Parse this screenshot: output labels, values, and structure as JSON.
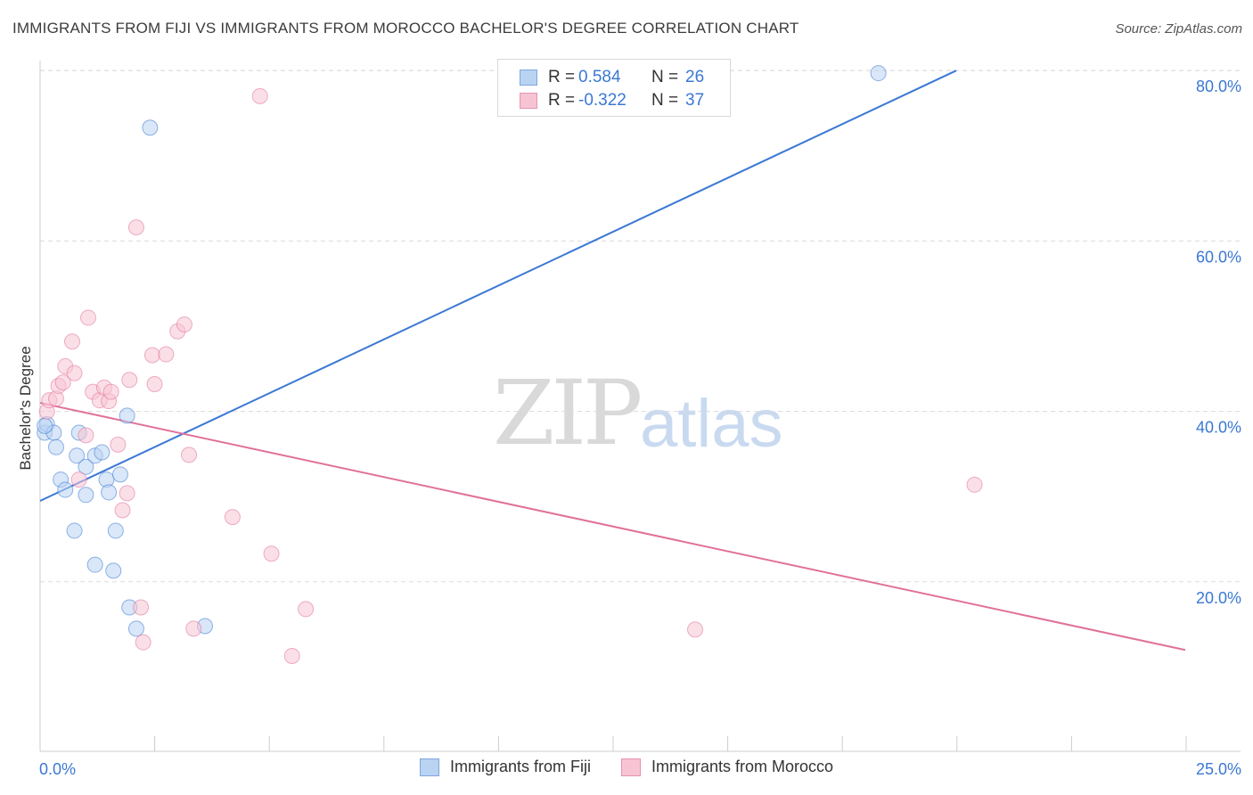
{
  "title": "IMMIGRANTS FROM FIJI VS IMMIGRANTS FROM MOROCCO BACHELOR'S DEGREE CORRELATION CHART",
  "source": "Source: ZipAtlas.com",
  "watermark": {
    "part1": "ZIP",
    "part2": "atlas"
  },
  "legend": {
    "rows": [
      {
        "r_label": "R =",
        "r_value": "0.584",
        "n_label": "N =",
        "n_value": "26"
      },
      {
        "r_label": "R =",
        "r_value": "-0.322",
        "n_label": "N =",
        "n_value": "37"
      }
    ]
  },
  "chart_data": {
    "type": "scatter",
    "ylabel": "Bachelor's Degree",
    "xlim": [
      0,
      25
    ],
    "ylim": [
      0,
      84
    ],
    "x_tick_labels": {
      "min": "0.0%",
      "max": "25.0%"
    },
    "y_ticks": [
      {
        "value": 20,
        "label": "20.0%"
      },
      {
        "value": 40,
        "label": "40.0%"
      },
      {
        "value": 60,
        "label": "60.0%"
      },
      {
        "value": 80,
        "label": "80.0%"
      }
    ],
    "grid": true,
    "legend_position": "bottom",
    "series": [
      {
        "name": "Immigrants from Fiji",
        "color": "#3a78d4",
        "fill": "#b9d3f3",
        "trend": {
          "x": [
            0,
            20
          ],
          "y": [
            29.5,
            80
          ]
        },
        "points": [
          [
            0.1,
            37.5
          ],
          [
            0.15,
            38.5
          ],
          [
            0.3,
            37.5
          ],
          [
            0.35,
            35.8
          ],
          [
            0.45,
            32
          ],
          [
            0.55,
            30.8
          ],
          [
            0.85,
            37.5
          ],
          [
            0.75,
            26
          ],
          [
            0.8,
            34.8
          ],
          [
            1.0,
            33.5
          ],
          [
            1.0,
            30.2
          ],
          [
            1.2,
            22
          ],
          [
            1.2,
            34.8
          ],
          [
            1.35,
            35.2
          ],
          [
            1.45,
            32
          ],
          [
            1.5,
            30.5
          ],
          [
            1.6,
            21.3
          ],
          [
            1.65,
            26
          ],
          [
            1.75,
            32.6
          ],
          [
            1.9,
            39.5
          ],
          [
            1.95,
            17
          ],
          [
            2.1,
            14.5
          ],
          [
            2.4,
            73.3
          ],
          [
            3.6,
            14.8
          ],
          [
            18.3,
            79.7
          ],
          [
            0.1,
            38.3
          ]
        ]
      },
      {
        "name": "Immigrants from Morocco",
        "color": "#e0719a",
        "fill": "#f7c4d4",
        "trend": {
          "x": [
            0,
            25
          ],
          "y": [
            41,
            12
          ]
        },
        "points": [
          [
            0.15,
            40
          ],
          [
            0.2,
            41.3
          ],
          [
            0.35,
            41.5
          ],
          [
            0.4,
            43
          ],
          [
            0.5,
            43.4
          ],
          [
            0.55,
            45.3
          ],
          [
            0.7,
            48.2
          ],
          [
            0.75,
            44.5
          ],
          [
            0.85,
            32
          ],
          [
            1.0,
            37.2
          ],
          [
            1.05,
            51
          ],
          [
            1.15,
            42.3
          ],
          [
            1.3,
            41.3
          ],
          [
            1.4,
            42.8
          ],
          [
            1.5,
            41.2
          ],
          [
            1.55,
            42.3
          ],
          [
            1.7,
            36.1
          ],
          [
            1.8,
            28.4
          ],
          [
            1.9,
            30.4
          ],
          [
            1.95,
            43.7
          ],
          [
            2.1,
            61.6
          ],
          [
            2.2,
            17
          ],
          [
            2.25,
            12.9
          ],
          [
            2.45,
            46.6
          ],
          [
            2.5,
            43.2
          ],
          [
            2.75,
            46.7
          ],
          [
            3.0,
            49.4
          ],
          [
            3.15,
            50.2
          ],
          [
            3.25,
            34.9
          ],
          [
            3.35,
            14.5
          ],
          [
            4.2,
            27.6
          ],
          [
            4.8,
            77
          ],
          [
            5.05,
            23.3
          ],
          [
            5.5,
            11.3
          ],
          [
            5.8,
            16.8
          ],
          [
            14.3,
            14.4
          ],
          [
            20.4,
            31.4
          ]
        ]
      }
    ]
  }
}
